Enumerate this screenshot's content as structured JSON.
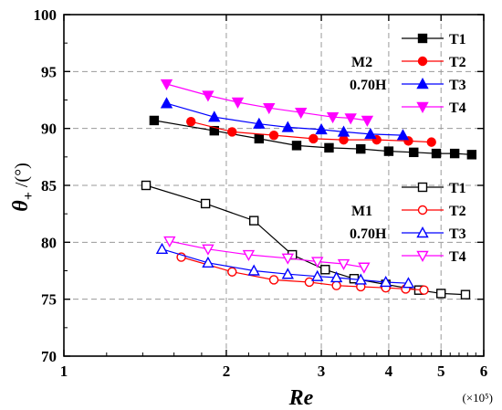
{
  "chart_data": {
    "type": "line",
    "xlabel": "Re",
    "xscale": "log",
    "xlim": [
      1,
      6
    ],
    "xticks": [
      "1",
      "2",
      "3",
      "4",
      "5",
      "6"
    ],
    "xticks_values": [
      1,
      2,
      3,
      4,
      5,
      6
    ],
    "x_multiplier": "(×10⁵)",
    "ylabel_main": "θ",
    "ylabel_sub": "+",
    "ylabel_rest": " /(°)",
    "ylim": [
      70,
      100
    ],
    "yticks": [
      70,
      75,
      80,
      85,
      90,
      95,
      100
    ],
    "grid": true,
    "groups": [
      {
        "label_line1": "M2",
        "label_line2": "0.70H"
      },
      {
        "label_line1": "M1",
        "label_line2": "0.70H"
      }
    ],
    "series": [
      {
        "name": "T1",
        "group": 0,
        "color": "#000000",
        "marker": "square",
        "filled": true,
        "x": [
          1.47,
          1.9,
          2.3,
          2.7,
          3.1,
          3.55,
          4.0,
          4.45,
          4.9,
          5.3,
          5.7
        ],
        "y": [
          90.7,
          89.8,
          89.1,
          88.5,
          88.3,
          88.2,
          88.0,
          87.9,
          87.8,
          87.8,
          87.7
        ]
      },
      {
        "name": "T2",
        "group": 0,
        "color": "#ff0000",
        "marker": "circle",
        "filled": true,
        "x": [
          1.72,
          2.05,
          2.45,
          2.9,
          3.3,
          3.8,
          4.35,
          4.8
        ],
        "y": [
          90.6,
          89.7,
          89.4,
          89.1,
          89.0,
          89.0,
          88.9,
          88.8
        ]
      },
      {
        "name": "T3",
        "group": 0,
        "color": "#0000ff",
        "marker": "triangle-up",
        "filled": true,
        "x": [
          1.55,
          1.9,
          2.3,
          2.6,
          3.0,
          3.3,
          3.7,
          4.25
        ],
        "y": [
          92.2,
          91.0,
          90.4,
          90.1,
          89.9,
          89.7,
          89.5,
          89.4
        ]
      },
      {
        "name": "T4",
        "group": 0,
        "color": "#ff00ff",
        "marker": "triangle-down",
        "filled": true,
        "x": [
          1.55,
          1.85,
          2.1,
          2.4,
          2.75,
          3.15,
          3.4,
          3.65
        ],
        "y": [
          93.9,
          92.9,
          92.3,
          91.8,
          91.4,
          91.0,
          90.9,
          90.7
        ]
      },
      {
        "name": "T1",
        "group": 1,
        "color": "#000000",
        "marker": "square",
        "filled": false,
        "x": [
          1.42,
          1.83,
          2.25,
          2.65,
          3.05,
          3.45,
          3.95,
          4.55,
          5.0,
          5.55
        ],
        "y": [
          85.0,
          83.4,
          81.9,
          78.9,
          77.6,
          76.8,
          76.3,
          75.8,
          75.5,
          75.4
        ]
      },
      {
        "name": "T2",
        "group": 1,
        "color": "#ff0000",
        "marker": "circle",
        "filled": false,
        "x": [
          1.65,
          2.05,
          2.45,
          2.85,
          3.2,
          3.55,
          3.95,
          4.3,
          4.65
        ],
        "y": [
          78.7,
          77.4,
          76.7,
          76.5,
          76.2,
          76.1,
          76.0,
          75.9,
          75.8
        ]
      },
      {
        "name": "T3",
        "group": 1,
        "color": "#0000ff",
        "marker": "triangle-up",
        "filled": false,
        "x": [
          1.52,
          1.85,
          2.25,
          2.6,
          2.95,
          3.2,
          3.55,
          3.95,
          4.35
        ],
        "y": [
          79.4,
          78.2,
          77.5,
          77.2,
          77.0,
          76.9,
          76.7,
          76.5,
          76.4
        ]
      },
      {
        "name": "T4",
        "group": 1,
        "color": "#ff00ff",
        "marker": "triangle-down",
        "filled": false,
        "x": [
          1.57,
          1.85,
          2.2,
          2.6,
          2.95,
          3.3,
          3.6
        ],
        "y": [
          80.1,
          79.4,
          78.9,
          78.6,
          78.3,
          78.1,
          77.8
        ]
      }
    ]
  }
}
